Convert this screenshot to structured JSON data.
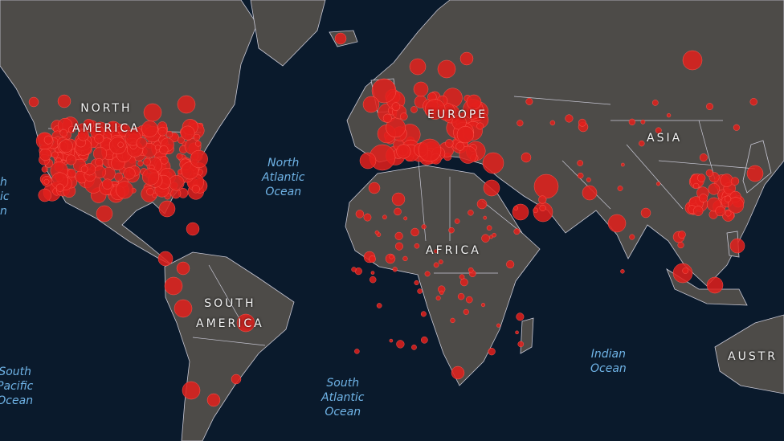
{
  "colors": {
    "ocean": "#0a1a2c",
    "land": "#4d4b48",
    "border": "#c9c9d6",
    "marker": "#e3201c",
    "continent_label": "#f2f2f2",
    "ocean_label": "#6fb3e6"
  },
  "continents": {
    "north_america": [
      "NORTH",
      "AMERICA"
    ],
    "europe": "EUROPE",
    "asia": "ASIA",
    "africa": "AFRICA",
    "south_america": [
      "SOUTH",
      "AMERICA"
    ],
    "australia": "AUSTR"
  },
  "oceans": {
    "north_atlantic": [
      "North",
      "Atlantic",
      "Ocean"
    ],
    "south_atlantic": [
      "South",
      "Atlantic",
      "Ocean"
    ],
    "indian": [
      "Indian",
      "Ocean"
    ],
    "south_pacific": [
      "South",
      "Pacific",
      "Ocean"
    ],
    "north_pacific_partial": [
      "h",
      "ic",
      "n"
    ]
  },
  "marker_meaning": "case-bubbles"
}
